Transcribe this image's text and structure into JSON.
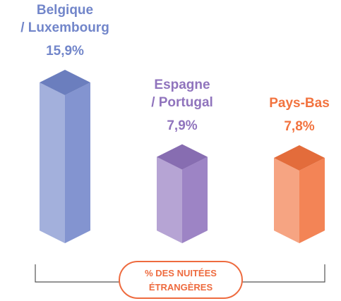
{
  "chart_data": {
    "type": "bar3d",
    "categories": [
      "Belgique\n/ Luxembourg",
      "Espagne\n/ Portugal",
      "Pays-Bas"
    ],
    "values": [
      15.9,
      7.9,
      7.8
    ],
    "value_labels": [
      "15,9%",
      "7,9%",
      "7,8%"
    ],
    "colors": [
      "#7286ca",
      "#9074bd",
      "#f2733f"
    ],
    "axis_label": "% DES NUITÉES\nÉTRANGÈRES"
  }
}
